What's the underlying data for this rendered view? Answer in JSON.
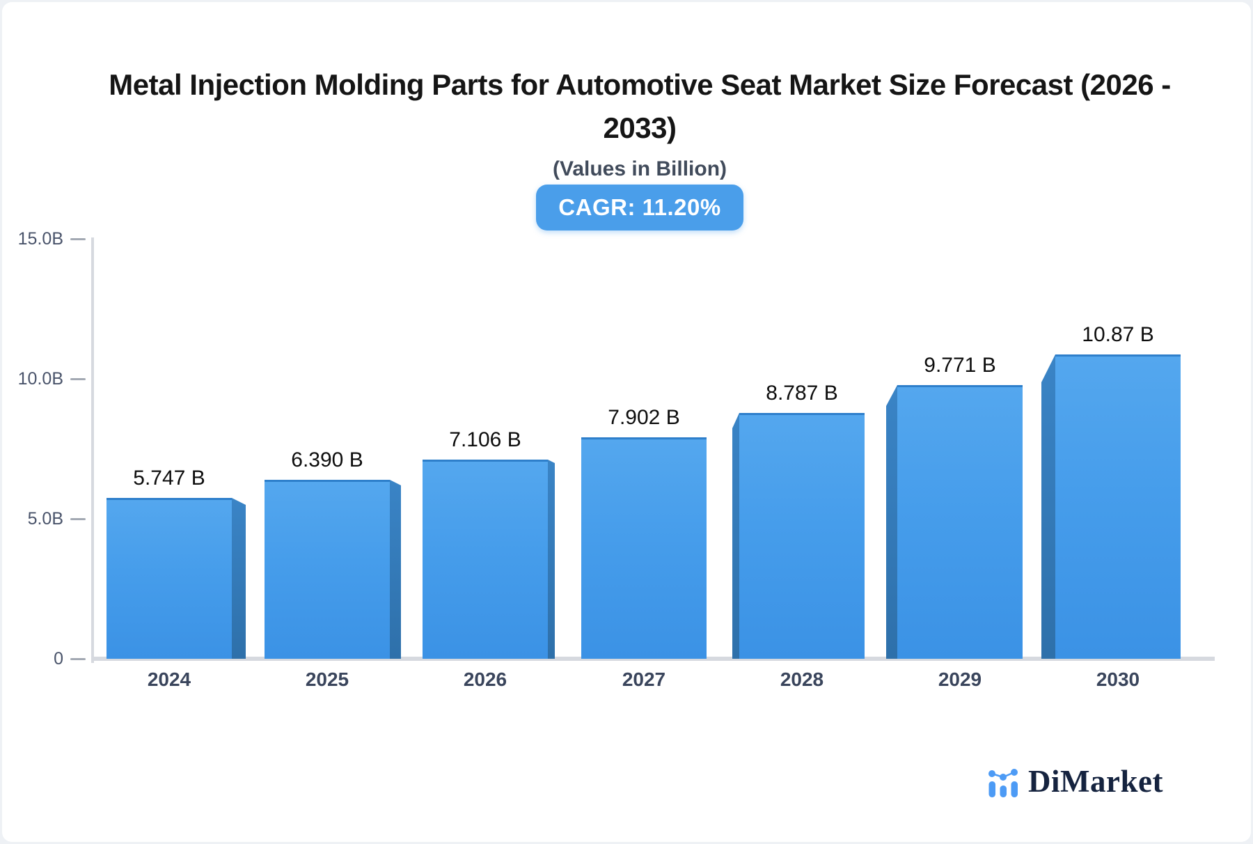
{
  "header": {
    "title_lines": [
      "Metal Injection Molding Parts for Automotive Seat Market Size Forecast (2026 -",
      "2033)"
    ],
    "subtitle": "(Values in Billion)",
    "cagr_label": "CAGR: 11.20%"
  },
  "chart_data": {
    "type": "bar",
    "title": "Metal Injection Molding Parts for Automotive Seat Market Size Forecast (2026 - 2033)",
    "subtitle": "(Values in Billion)",
    "cagr_percent": "11.20%",
    "unit": "Billion",
    "categories": [
      "2024",
      "2025",
      "2026",
      "2027",
      "2028",
      "2029",
      "2030"
    ],
    "values": [
      5.747,
      6.39,
      7.106,
      7.902,
      8.787,
      9.771,
      10.87
    ],
    "value_labels": [
      "5.747 B",
      "6.390 B",
      "7.106 B",
      "7.902 B",
      "8.787 B",
      "9.771 B",
      "10.87 B"
    ],
    "xlabel": "",
    "ylabel": "",
    "ylim": [
      0,
      15
    ],
    "yticks": [
      {
        "value": 15,
        "label": "15.0B"
      },
      {
        "value": 10,
        "label": "10.0B"
      },
      {
        "value": 5,
        "label": "5.0B"
      },
      {
        "value": 0,
        "label": "0"
      }
    ],
    "grid": false,
    "legend": false,
    "bar_color_top": "#54A7EE",
    "bar_color_bottom": "#3B92E5",
    "bar_side_color": "#2F74B2",
    "bar_top_edge_color": "#2E7FCB",
    "axis_color": "#D6D9DF"
  },
  "branding": {
    "logo_text": "DiMarket",
    "logo_accent_color": "#4D9BF5",
    "logo_text_color": "#15233F"
  }
}
